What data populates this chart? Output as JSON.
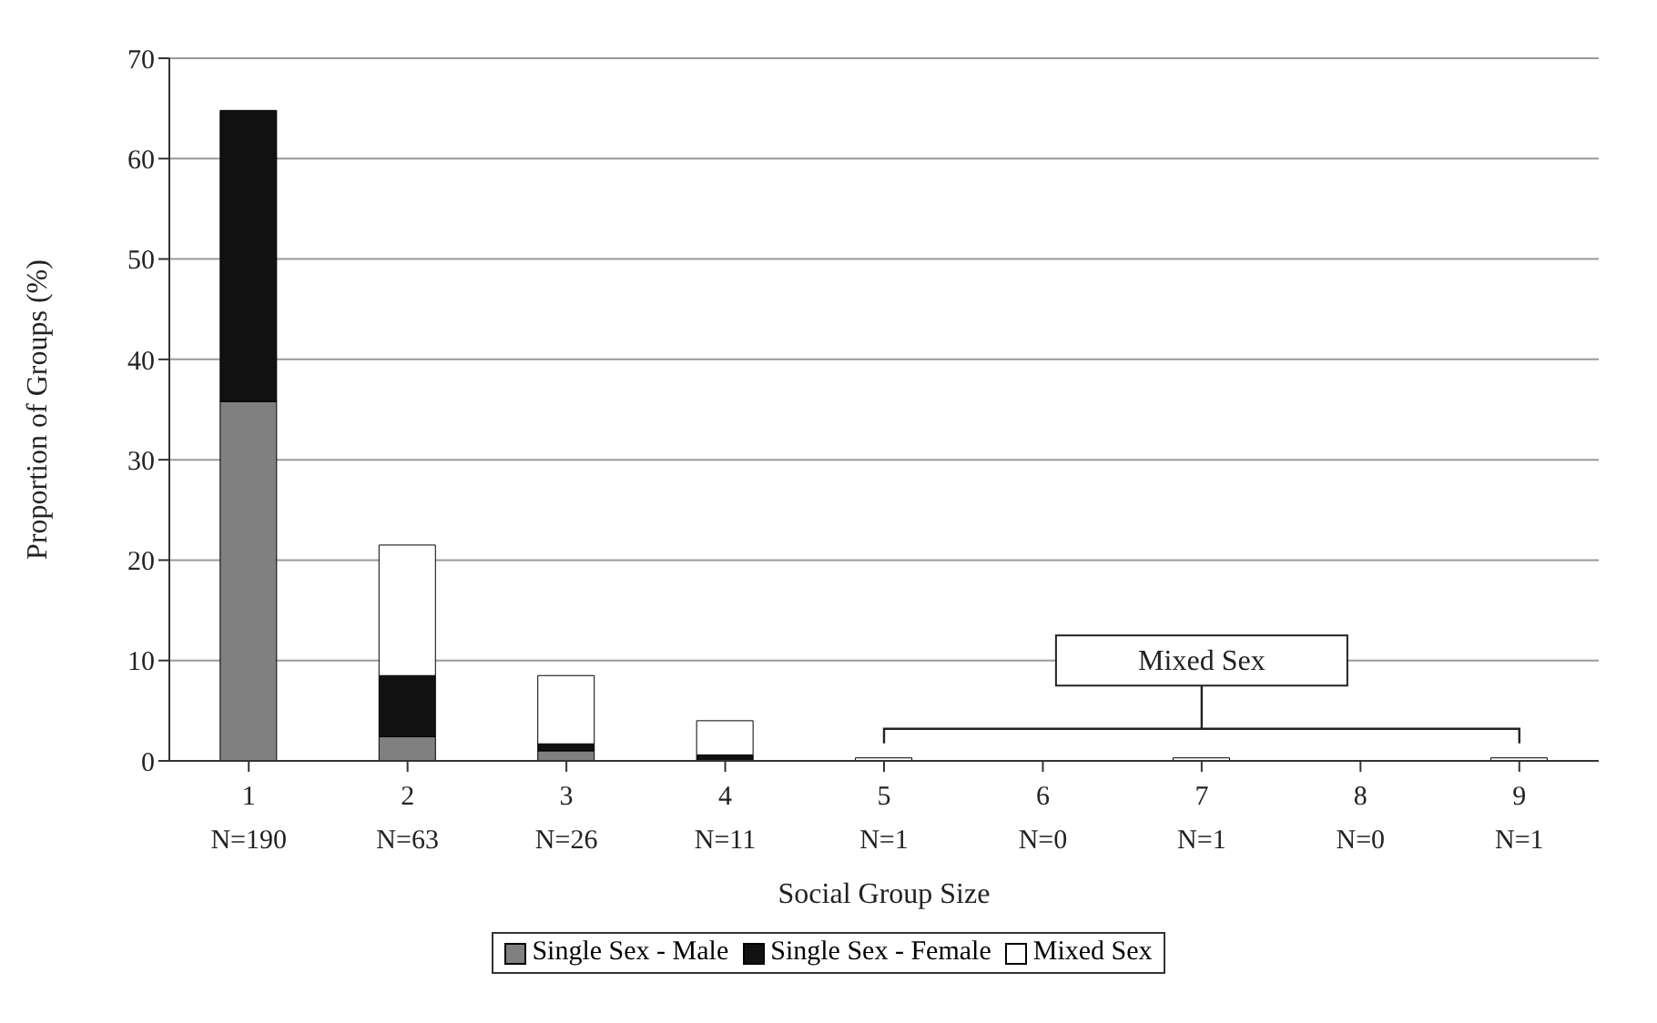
{
  "chart_data": {
    "type": "bar",
    "stacked": true,
    "xlabel": "Social Group Size",
    "ylabel": "Proportion of Groups (%)",
    "categories": [
      "1\nN=190",
      "2\nN=63",
      "3\nN=26",
      "4\nN=11",
      "5\nN=1",
      "6\nN=0",
      "7\nN=1",
      "8\nN=0",
      "9\nN=1"
    ],
    "series": [
      {
        "name": "Single Sex - Male",
        "color": "#808080",
        "values": [
          35.8,
          2.4,
          1.0,
          0,
          0,
          0,
          0,
          0,
          0
        ]
      },
      {
        "name": "Single Sex - Female",
        "color": "#111111",
        "values": [
          29.0,
          6.1,
          0.7,
          0.6,
          0,
          0,
          0,
          0,
          0
        ]
      },
      {
        "name": "Mixed Sex",
        "color": "#ffffff",
        "values": [
          0,
          13.0,
          6.8,
          3.4,
          0.3,
          0,
          0.3,
          0,
          0.3
        ]
      }
    ],
    "ylim": [
      0,
      70
    ],
    "yticks": [
      0,
      10,
      20,
      30,
      40,
      50,
      60,
      70
    ],
    "grid": "y",
    "legend": "bottom",
    "annotations": [
      "Mixed Sex"
    ]
  }
}
